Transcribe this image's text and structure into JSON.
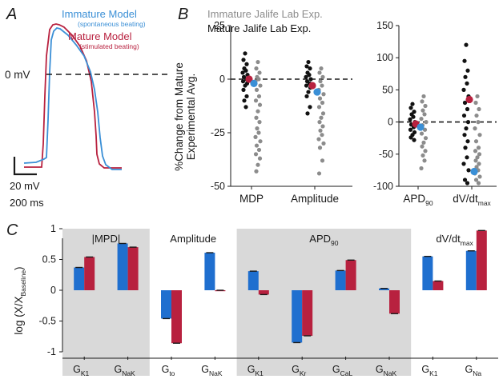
{
  "panel_a": {
    "letter": "A",
    "legend": [
      {
        "name": "Immature Model",
        "note": "(spontaneous beating)",
        "color": "#3a8fd6"
      },
      {
        "name": "Mature Model",
        "note": "(stimulated beating)",
        "color": "#b8213f"
      }
    ],
    "zero_label": "0 mV",
    "scalebar_voltage": "20 mV",
    "scalebar_time": "200 ms"
  },
  "chart_data": [
    {
      "panel": "B",
      "type": "scatter",
      "panel_letter": "B",
      "legend": [
        {
          "name": "Immature Jalife Lab Exp.",
          "color": "#8c8c8c"
        },
        {
          "name": "Mature Jalife Lab Exp.",
          "color": "#111111"
        }
      ],
      "ylabel_lines": [
        "%Change from Mature",
        "Experimental Avg."
      ],
      "subplots": [
        {
          "ylim": [
            -50,
            25
          ],
          "yticks": [
            25,
            0,
            -25,
            -50
          ],
          "categories": [
            "MDP",
            "Amplitude"
          ],
          "series": [
            {
              "name": "Mature Jalife Lab Exp.",
              "color": "#111111",
              "values": [
                [
                  12,
                  9,
                  7,
                  5,
                  4,
                  3,
                  2,
                  1,
                  0,
                  -1,
                  -2,
                  -3,
                  -5,
                  -8,
                  -10,
                  -13
                ],
                [
                  8,
                  6,
                  5,
                  3,
                  2,
                  1,
                  0,
                  -1,
                  -2,
                  -3,
                  -4,
                  -6,
                  -8,
                  -13,
                  -16
                ]
              ]
            },
            {
              "name": "Immature Jalife Lab Exp.",
              "color": "#8c8c8c",
              "values": [
                [
                  8,
                  5,
                  3,
                  1,
                  0,
                  -1,
                  -3,
                  -5,
                  -8,
                  -10,
                  -12,
                  -15,
                  -18,
                  -20,
                  -23,
                  -25,
                  -27,
                  -29,
                  -31,
                  -33,
                  -35,
                  -37,
                  -40,
                  -43
                ],
                [
                  5,
                  3,
                  1,
                  -1,
                  -3,
                  -5,
                  -7,
                  -9,
                  -11,
                  -13,
                  -16,
                  -18,
                  -20,
                  -22,
                  -24,
                  -26,
                  -28,
                  -30,
                  -32,
                  -38,
                  -44
                ]
              ]
            },
            {
              "name": "Mature Model",
              "color": "#b8213f",
              "values": [
                0,
                -3
              ]
            },
            {
              "name": "Immature Model",
              "color": "#3a8fd6",
              "values": [
                -2,
                -6
              ]
            }
          ]
        },
        {
          "ylim": [
            -100,
            150
          ],
          "yticks": [
            150,
            100,
            50,
            0,
            -50,
            -100
          ],
          "categories": [
            "APD90",
            "dV/dtmax"
          ],
          "category_labels": [
            {
              "main": "APD",
              "sub": "90"
            },
            {
              "main": "dV/dt",
              "sub": "max"
            }
          ],
          "series": [
            {
              "name": "Mature Jalife Lab Exp.",
              "color": "#111111",
              "values": [
                [
                  28,
                  22,
                  16,
                  12,
                  8,
                  4,
                  0,
                  -4,
                  -8,
                  -12,
                  -16,
                  -20,
                  -24,
                  -28
                ],
                [
                  120,
                  95,
                  80,
                  70,
                  60,
                  50,
                  40,
                  30,
                  20,
                  10,
                  0,
                  -10,
                  -20,
                  -30,
                  -40,
                  -55,
                  -65,
                  -75,
                  -90,
                  -95
                ]
              ]
            },
            {
              "name": "Immature Jalife Lab Exp.",
              "color": "#8c8c8c",
              "values": [
                [
                  40,
                  32,
                  25,
                  18,
                  12,
                  5,
                  0,
                  -5,
                  -12,
                  -18,
                  -25,
                  -32,
                  -38,
                  -45,
                  -52,
                  -60,
                  -72
                ],
                [
                  40,
                  30,
                  20,
                  10,
                  0,
                  -10,
                  -20,
                  -30,
                  -40,
                  -45,
                  -50,
                  -55,
                  -60,
                  -65,
                  -70,
                  -75,
                  -80,
                  -85,
                  -90,
                  -95
                ]
              ]
            },
            {
              "name": "Mature Model",
              "color": "#b8213f",
              "values": [
                -3,
                35
              ]
            },
            {
              "name": "Immature Model",
              "color": "#3a8fd6",
              "values": [
                -8,
                -77
              ]
            }
          ]
        }
      ]
    },
    {
      "panel": "C",
      "type": "bar",
      "panel_letter": "C",
      "ylabel": {
        "main": "log (X/X",
        "sub": "Baseline",
        "end": ")"
      },
      "ylim": [
        -1,
        1
      ],
      "yticks": [
        1,
        0.5,
        0,
        -0.5,
        -1
      ],
      "ytick_labels": [
        "1",
        "0.5",
        "0",
        "-0.5",
        "-1"
      ],
      "colors": [
        "#1f6fcf",
        "#b8213f"
      ],
      "groups": [
        {
          "title": {
            "main": "|MPD|",
            "sub": ""
          },
          "shaded": true,
          "bars": [
            {
              "label": {
                "main": "G",
                "sub": "K1"
              },
              "values": [
                0.37,
                0.54
              ]
            },
            {
              "label": {
                "main": "G",
                "sub": "NaK"
              },
              "values": [
                0.76,
                0.7
              ]
            }
          ]
        },
        {
          "title": {
            "main": "Amplitude",
            "sub": ""
          },
          "shaded": false,
          "bars": [
            {
              "label": {
                "main": "G",
                "sub": "to"
              },
              "values": [
                -0.46,
                -0.86
              ]
            },
            {
              "label": {
                "main": "G",
                "sub": "NaK"
              },
              "values": [
                0.61,
                0.0
              ]
            }
          ]
        },
        {
          "title": {
            "main": "APD",
            "sub": "90"
          },
          "shaded": true,
          "bars": [
            {
              "label": {
                "main": "G",
                "sub": "K1"
              },
              "values": [
                0.31,
                -0.07
              ]
            },
            {
              "label": {
                "main": "G",
                "sub": "Kr"
              },
              "values": [
                -0.85,
                -0.74
              ]
            },
            {
              "label": {
                "main": "G",
                "sub": "CaL"
              },
              "values": [
                0.32,
                0.49
              ]
            },
            {
              "label": {
                "main": "G",
                "sub": "NaK"
              },
              "values": [
                0.03,
                -0.38
              ]
            }
          ]
        },
        {
          "title": {
            "main": "dV/dt",
            "sub": "max"
          },
          "shaded": false,
          "bars": [
            {
              "label": {
                "main": "G",
                "sub": "K1"
              },
              "values": [
                0.55,
                0.15
              ]
            },
            {
              "label": {
                "main": "G",
                "sub": "Na"
              },
              "values": [
                0.64,
                0.97
              ]
            }
          ]
        }
      ]
    }
  ]
}
